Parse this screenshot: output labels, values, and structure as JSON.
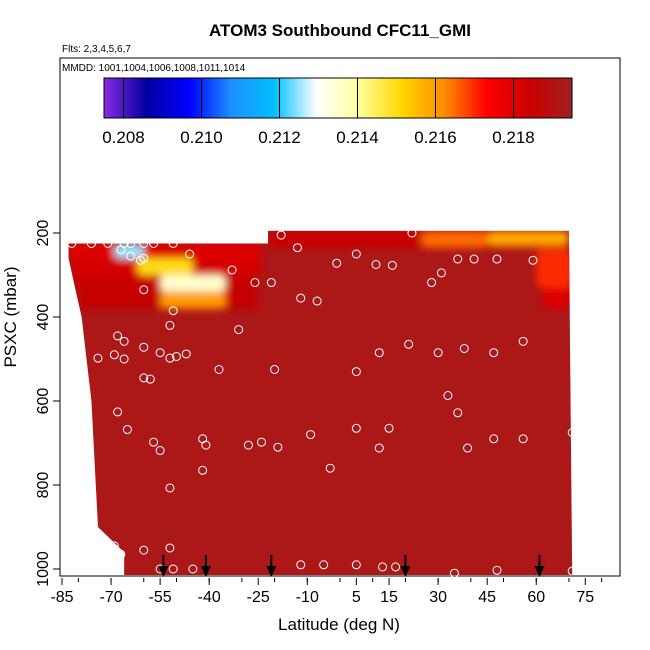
{
  "chart_data": {
    "type": "heatmap",
    "title": "ATOM3 Southbound CFC11_GMI",
    "notes": {
      "flights": "Flts: 2,3,4,5,6,7",
      "dates": "MMDD: 1001,1004,1006,1008,1011,1014"
    },
    "xlabel": "Latitude (deg N)",
    "ylabel": "PSXC (mbar)",
    "xlim": [
      -85,
      85
    ],
    "ylim": [
      1000,
      80
    ],
    "y_reversed": true,
    "xticks": [
      -85,
      -70,
      -55,
      -40,
      -25,
      -10,
      5,
      15,
      30,
      45,
      60,
      75
    ],
    "yticks": [
      200,
      400,
      600,
      800,
      1000
    ],
    "colorbar": {
      "ticks": [
        "0.208",
        "0.210",
        "0.212",
        "0.214",
        "0.216",
        "0.218"
      ],
      "min": 0.2075,
      "max": 0.2195,
      "colors": [
        "#8a2be2",
        "#0000a0",
        "#0000ff",
        "#1e90ff",
        "#00bfff",
        "#ffffff",
        "#ffff99",
        "#ffd700",
        "#ff8c00",
        "#ff0000",
        "#cc0000",
        "#a02020"
      ]
    },
    "background_value": 0.2192,
    "field_extent": {
      "top_left": [
        -83,
        225
      ],
      "top_mid": [
        -22,
        225
      ],
      "top_right_start": [
        -22,
        195
      ],
      "top_right_end": [
        70,
        195
      ],
      "bottom": 1000,
      "right_lat": 71,
      "left_lat_bottom": -66
    },
    "features": [
      {
        "lat": [
          -83,
          -24
        ],
        "p": [
          225,
          260
        ],
        "value": 0.218
      },
      {
        "lat": [
          -69,
          -60
        ],
        "p": [
          225,
          260
        ],
        "value": 0.2125
      },
      {
        "lat": [
          -22,
          70
        ],
        "p": [
          195,
          235
        ],
        "value": 0.2185
      },
      {
        "lat": [
          25,
          45
        ],
        "p": [
          195,
          235
        ],
        "value": 0.2165
      },
      {
        "lat": [
          45,
          70
        ],
        "p": [
          195,
          230
        ],
        "value": 0.2158
      },
      {
        "lat": [
          -82,
          -24
        ],
        "p": [
          260,
          300
        ],
        "value": 0.2182
      },
      {
        "lat": [
          -62,
          -45
        ],
        "p": [
          260,
          300
        ],
        "value": 0.215
      },
      {
        "lat": [
          -82,
          -25
        ],
        "p": [
          300,
          340
        ],
        "value": 0.2185
      },
      {
        "lat": [
          -55,
          -35
        ],
        "p": [
          300,
          340
        ],
        "value": 0.2135
      },
      {
        "lat": [
          -80,
          -25
        ],
        "p": [
          340,
          380
        ],
        "value": 0.2186
      },
      {
        "lat": [
          -55,
          -35
        ],
        "p": [
          340,
          380
        ],
        "value": 0.216
      },
      {
        "lat": [
          60,
          71
        ],
        "p": [
          240,
          330
        ],
        "value": 0.217
      },
      {
        "lat": [
          62,
          71
        ],
        "p": [
          330,
          380
        ],
        "value": 0.218
      }
    ],
    "aircraft_lats": [
      -54,
      -41,
      -21,
      20,
      61
    ],
    "obs_points": [
      [
        -82,
        225
      ],
      [
        -76,
        225
      ],
      [
        -71,
        225
      ],
      [
        -66,
        225
      ],
      [
        -64,
        225
      ],
      [
        -60,
        225
      ],
      [
        -57,
        225
      ],
      [
        -51,
        225
      ],
      [
        -67,
        240
      ],
      [
        -64,
        255
      ],
      [
        -60,
        260
      ],
      [
        -46,
        250
      ],
      [
        -61,
        265
      ],
      [
        -33,
        288
      ],
      [
        -26,
        318
      ],
      [
        -21,
        318
      ],
      [
        -13,
        235
      ],
      [
        -18,
        205
      ],
      [
        -1,
        272
      ],
      [
        5,
        250
      ],
      [
        11,
        275
      ],
      [
        16,
        277
      ],
      [
        22,
        200
      ],
      [
        28,
        318
      ],
      [
        31,
        295
      ],
      [
        36,
        262
      ],
      [
        41,
        262
      ],
      [
        48,
        262
      ],
      [
        59,
        265
      ],
      [
        -60,
        335
      ],
      [
        -51,
        385
      ],
      [
        -52,
        420
      ],
      [
        -31,
        430
      ],
      [
        -12,
        355
      ],
      [
        -7,
        362
      ],
      [
        -68,
        445
      ],
      [
        -66,
        458
      ],
      [
        -60,
        472
      ],
      [
        -55,
        485
      ],
      [
        -52,
        498
      ],
      [
        -50,
        494
      ],
      [
        -47,
        488
      ],
      [
        -74,
        498
      ],
      [
        -69,
        490
      ],
      [
        -60,
        545
      ],
      [
        -58,
        548
      ],
      [
        -37,
        525
      ],
      [
        -20,
        525
      ],
      [
        5,
        530
      ],
      [
        12,
        485
      ],
      [
        21,
        465
      ],
      [
        30,
        485
      ],
      [
        38,
        475
      ],
      [
        47,
        485
      ],
      [
        56,
        458
      ],
      [
        -66,
        500
      ],
      [
        33,
        587
      ],
      [
        36,
        628
      ],
      [
        -68,
        626
      ],
      [
        -65,
        668
      ],
      [
        -57,
        698
      ],
      [
        -55,
        718
      ],
      [
        -42,
        690
      ],
      [
        -41,
        705
      ],
      [
        -28,
        705
      ],
      [
        -24,
        698
      ],
      [
        -19,
        710
      ],
      [
        -9,
        680
      ],
      [
        -3,
        760
      ],
      [
        5,
        665
      ],
      [
        12,
        712
      ],
      [
        15,
        665
      ],
      [
        39,
        712
      ],
      [
        47,
        690
      ],
      [
        56,
        690
      ],
      [
        71,
        675
      ],
      [
        -42,
        765
      ],
      [
        -52,
        807
      ],
      [
        -72,
        955
      ],
      [
        -69,
        945
      ],
      [
        -67,
        965
      ],
      [
        -60,
        955
      ],
      [
        -52,
        950
      ],
      [
        -68,
        975
      ],
      [
        -55,
        1000
      ],
      [
        -51,
        1000
      ],
      [
        -45,
        1000
      ],
      [
        -12,
        990
      ],
      [
        -5,
        990
      ],
      [
        5,
        990
      ],
      [
        13,
        995
      ],
      [
        17,
        995
      ],
      [
        35,
        1010
      ],
      [
        48,
        1003
      ],
      [
        71,
        1005
      ]
    ]
  }
}
